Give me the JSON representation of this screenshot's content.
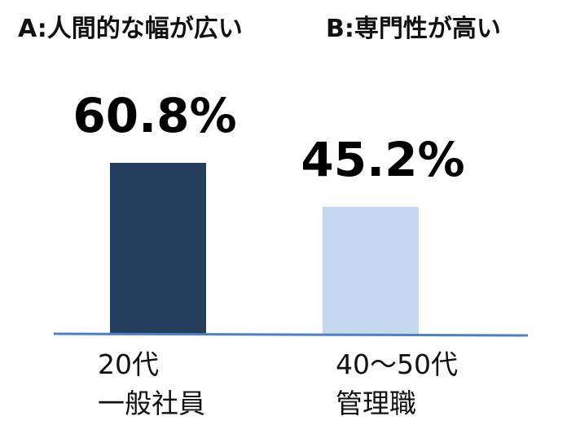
{
  "legend": {
    "a": "A:人間的な幅が広い",
    "b": "B:専門性が高い"
  },
  "chart_data": {
    "type": "bar",
    "categories": [
      {
        "line1": "20代",
        "line2": "一般社員"
      },
      {
        "line1": "40～50代",
        "line2": "管理職"
      }
    ],
    "values": [
      60.8,
      45.2
    ],
    "data_labels": [
      "60.8%",
      "45.2%"
    ],
    "colors": [
      "#253d5e",
      "#c6d9f0"
    ],
    "axis_color": "#4f81bd",
    "ylim": [
      0,
      100
    ],
    "title": "",
    "xlabel": "",
    "ylabel": ""
  }
}
